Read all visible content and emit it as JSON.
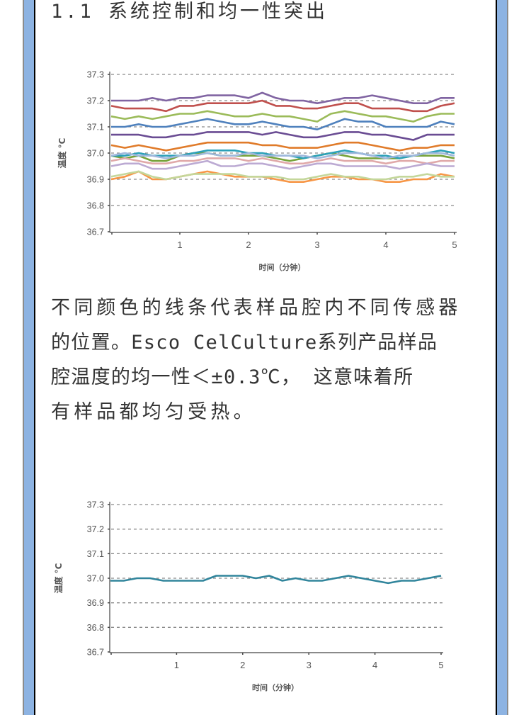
{
  "heading": "1.1 系统控制和均一性突出",
  "paragraph": [
    "不同颜色的线条代表样品腔内不同传感器",
    "的位置。Esco CelCulture系列产品样品",
    "腔温度的均一性＜±0.3℃， 这意味着所",
    "有样品都均匀受热。"
  ],
  "colors": {
    "border_blue": "#8db3e2",
    "grid": "#999999",
    "text": "#333333"
  },
  "chart_data": [
    {
      "type": "line",
      "xlabel": "时间（分钟）",
      "ylabel": "温度 °C",
      "xlim": [
        0,
        5
      ],
      "ylim": [
        36.7,
        37.3
      ],
      "xticks": [
        "1",
        "2",
        "3",
        "4",
        "5"
      ],
      "yticks": [
        "37.3",
        "37.2",
        "37.1",
        "37.0",
        "36.9",
        "36.8",
        "36.7"
      ],
      "grid": "horizontal dashed",
      "x": [
        0,
        0.2,
        0.4,
        0.6,
        0.8,
        1.0,
        1.2,
        1.4,
        1.6,
        1.8,
        2.0,
        2.2,
        2.4,
        2.6,
        2.8,
        3.0,
        3.2,
        3.4,
        3.6,
        3.8,
        4.0,
        4.2,
        4.4,
        4.6,
        4.8,
        5.0
      ],
      "series": [
        {
          "color": "#8064a2",
          "values": [
            37.2,
            37.2,
            37.2,
            37.21,
            37.2,
            37.21,
            37.21,
            37.22,
            37.22,
            37.22,
            37.21,
            37.23,
            37.21,
            37.2,
            37.2,
            37.19,
            37.2,
            37.21,
            37.21,
            37.22,
            37.21,
            37.2,
            37.19,
            37.19,
            37.21,
            37.21
          ]
        },
        {
          "color": "#c0504d",
          "values": [
            37.18,
            37.17,
            37.17,
            37.17,
            37.16,
            37.18,
            37.18,
            37.19,
            37.19,
            37.19,
            37.19,
            37.2,
            37.18,
            37.18,
            37.17,
            37.17,
            37.18,
            37.19,
            37.19,
            37.17,
            37.17,
            37.17,
            37.16,
            37.16,
            37.18,
            37.19
          ]
        },
        {
          "color": "#9bbb59",
          "values": [
            37.14,
            37.13,
            37.14,
            37.13,
            37.14,
            37.15,
            37.15,
            37.16,
            37.15,
            37.14,
            37.14,
            37.15,
            37.14,
            37.14,
            37.13,
            37.12,
            37.15,
            37.16,
            37.15,
            37.14,
            37.14,
            37.13,
            37.12,
            37.14,
            37.15,
            37.15
          ]
        },
        {
          "color": "#4f81bd",
          "values": [
            37.1,
            37.1,
            37.11,
            37.1,
            37.1,
            37.11,
            37.12,
            37.13,
            37.12,
            37.11,
            37.11,
            37.12,
            37.11,
            37.1,
            37.1,
            37.09,
            37.11,
            37.13,
            37.12,
            37.12,
            37.1,
            37.1,
            37.1,
            37.1,
            37.12,
            37.11
          ]
        },
        {
          "color": "#6a4c93",
          "values": [
            37.07,
            37.07,
            37.07,
            37.06,
            37.06,
            37.07,
            37.07,
            37.08,
            37.08,
            37.08,
            37.08,
            37.07,
            37.08,
            37.07,
            37.06,
            37.06,
            37.07,
            37.08,
            37.08,
            37.07,
            37.07,
            37.06,
            37.05,
            37.07,
            37.07,
            37.07
          ]
        },
        {
          "color": "#e07b2a",
          "values": [
            37.03,
            37.02,
            37.03,
            37.02,
            37.01,
            37.02,
            37.03,
            37.04,
            37.04,
            37.04,
            37.04,
            37.03,
            37.03,
            37.02,
            37.02,
            37.02,
            37.03,
            37.04,
            37.04,
            37.03,
            37.02,
            37.01,
            37.02,
            37.02,
            37.03,
            37.03
          ]
        },
        {
          "color": "#77a33a",
          "values": [
            36.99,
            36.98,
            36.99,
            36.97,
            36.97,
            36.99,
            37.0,
            37.0,
            36.99,
            36.99,
            36.99,
            36.99,
            36.98,
            36.97,
            36.98,
            36.99,
            37.0,
            36.99,
            36.98,
            36.98,
            36.98,
            36.98,
            36.99,
            36.99,
            36.99,
            36.98
          ]
        },
        {
          "color": "#2aa0b8",
          "values": [
            36.99,
            36.99,
            37.0,
            36.99,
            36.99,
            36.99,
            37.0,
            37.01,
            37.01,
            37.01,
            37.0,
            37.0,
            36.99,
            36.99,
            36.98,
            36.99,
            37.0,
            37.01,
            37.0,
            36.99,
            36.99,
            36.98,
            36.99,
            37.0,
            37.01,
            37.0
          ]
        },
        {
          "color": "#9fb8dc",
          "values": [
            36.99,
            37.0,
            36.99,
            36.99,
            36.98,
            36.99,
            36.99,
            37.0,
            36.99,
            36.99,
            37.0,
            36.99,
            36.99,
            36.99,
            36.99,
            36.98,
            36.99,
            37.0,
            37.0,
            36.99,
            36.98,
            36.99,
            36.99,
            37.0,
            37.0,
            36.99
          ]
        },
        {
          "color": "#e0a9a9",
          "values": [
            36.97,
            36.98,
            36.97,
            36.96,
            36.96,
            36.97,
            36.97,
            36.98,
            36.98,
            36.98,
            36.97,
            36.98,
            36.97,
            36.96,
            36.96,
            36.97,
            36.98,
            36.97,
            36.97,
            36.97,
            36.96,
            36.97,
            36.97,
            36.96,
            36.97,
            36.97
          ]
        },
        {
          "color": "#bcaad3",
          "values": [
            36.95,
            36.96,
            36.96,
            36.94,
            36.94,
            36.95,
            36.96,
            36.97,
            36.95,
            36.95,
            36.96,
            36.96,
            36.95,
            36.94,
            36.95,
            36.96,
            36.96,
            36.95,
            36.95,
            36.95,
            36.95,
            36.94,
            36.95,
            36.96,
            36.95,
            36.95
          ]
        },
        {
          "color": "#f79646",
          "values": [
            36.9,
            36.91,
            36.93,
            36.9,
            36.9,
            36.91,
            36.92,
            36.93,
            36.92,
            36.91,
            36.91,
            36.91,
            36.9,
            36.89,
            36.89,
            36.9,
            36.91,
            36.91,
            36.9,
            36.9,
            36.89,
            36.89,
            36.9,
            36.9,
            36.92,
            36.91
          ]
        },
        {
          "color": "#c4d79b",
          "values": [
            36.91,
            36.92,
            36.93,
            36.91,
            36.9,
            36.91,
            36.92,
            36.92,
            36.92,
            36.92,
            36.91,
            36.91,
            36.91,
            36.9,
            36.9,
            36.91,
            36.92,
            36.91,
            36.91,
            36.9,
            36.9,
            36.91,
            36.91,
            36.92,
            36.91,
            36.91
          ]
        }
      ]
    },
    {
      "type": "line",
      "xlabel": "时间（分钟）",
      "ylabel": "温度 °C",
      "xlim": [
        0,
        5
      ],
      "ylim": [
        36.7,
        37.3
      ],
      "xticks": [
        "1",
        "2",
        "3",
        "4",
        "5"
      ],
      "yticks": [
        "37.3",
        "37.2",
        "37.1",
        "37.0",
        "36.9",
        "36.8",
        "36.7"
      ],
      "grid": "horizontal dashed",
      "x": [
        0,
        0.2,
        0.4,
        0.6,
        0.8,
        1.0,
        1.2,
        1.4,
        1.6,
        1.8,
        2.0,
        2.2,
        2.4,
        2.6,
        2.8,
        3.0,
        3.2,
        3.4,
        3.6,
        3.8,
        4.0,
        4.2,
        4.4,
        4.6,
        4.8,
        5.0
      ],
      "series": [
        {
          "color": "#31859c",
          "values": [
            36.99,
            36.99,
            37.0,
            37.0,
            36.99,
            36.99,
            36.99,
            36.99,
            37.01,
            37.01,
            37.01,
            37.0,
            37.01,
            36.99,
            37.0,
            36.99,
            36.99,
            37.0,
            37.01,
            37.0,
            36.99,
            36.98,
            36.99,
            36.99,
            37.0,
            37.01
          ]
        }
      ]
    }
  ]
}
